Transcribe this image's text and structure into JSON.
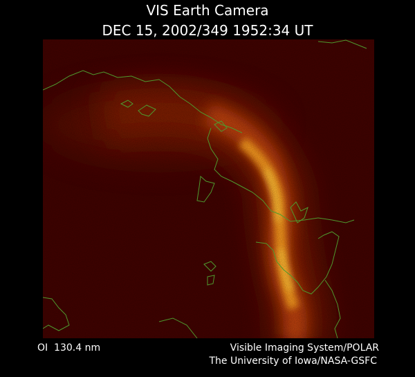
{
  "header": {
    "title": "VIS Earth Camera",
    "subtitle": "DEC 15, 2002/349 1952:34 UT"
  },
  "footer": {
    "filter": "OI  130.4 nm",
    "credit_line1": "Visible Imaging System/POLAR",
    "credit_line2": "The University of Iowa/NASA-GSFC"
  }
}
